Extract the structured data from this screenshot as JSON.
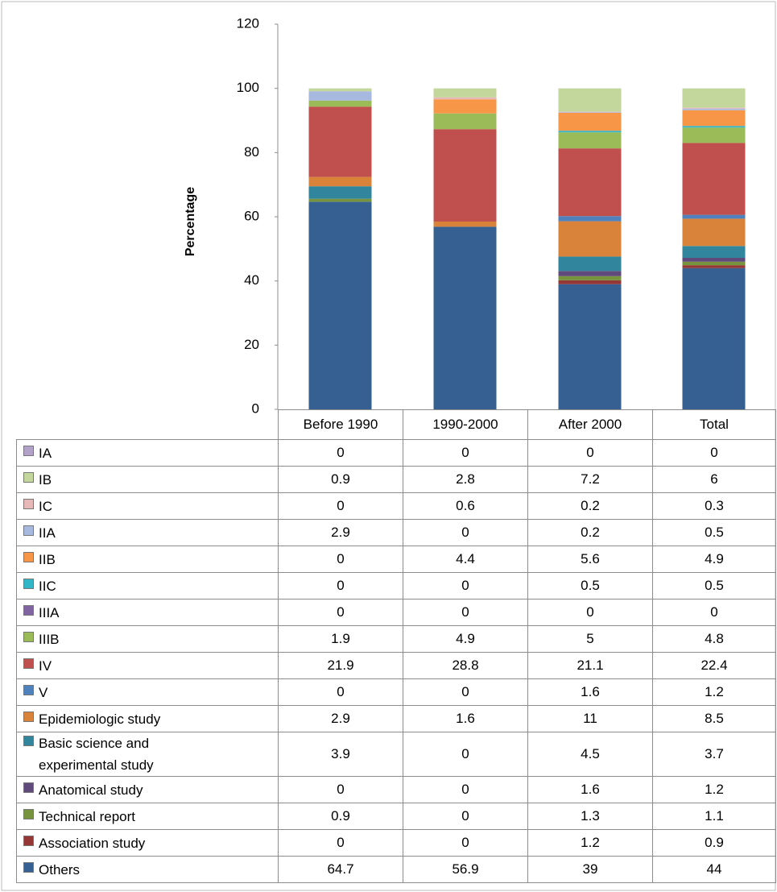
{
  "chart_data": {
    "type": "bar",
    "stacked": true,
    "ylabel": "Percentage",
    "categories": [
      "Before 1990",
      "1990-2000",
      "After 2000",
      "Total"
    ],
    "ylim": [
      0,
      120
    ],
    "yticks": [
      0,
      20,
      40,
      60,
      80,
      100,
      120
    ],
    "grid": false,
    "series": [
      {
        "name": "IA",
        "color": "#b3a2c7",
        "values": [
          0,
          0,
          0,
          0
        ]
      },
      {
        "name": "IB",
        "color": "#c3d69b",
        "values": [
          0.9,
          2.8,
          7.2,
          6
        ]
      },
      {
        "name": "IC",
        "color": "#e6b9b8",
        "values": [
          0,
          0.6,
          0.2,
          0.3
        ]
      },
      {
        "name": "IIA",
        "color": "#a7b9de",
        "values": [
          2.9,
          0,
          0.2,
          0.5
        ]
      },
      {
        "name": "IIB",
        "color": "#f79646",
        "values": [
          0,
          4.4,
          5.6,
          4.9
        ]
      },
      {
        "name": "IIC",
        "color": "#31b6c8",
        "values": [
          0,
          0,
          0.5,
          0.5
        ]
      },
      {
        "name": "IIIA",
        "color": "#8064a2",
        "values": [
          0,
          0,
          0,
          0
        ]
      },
      {
        "name": "IIIB",
        "color": "#9bbb59",
        "values": [
          1.9,
          4.9,
          5,
          4.8
        ]
      },
      {
        "name": "IV",
        "color": "#c0504d",
        "values": [
          21.9,
          28.8,
          21.1,
          22.4
        ]
      },
      {
        "name": "V",
        "color": "#4f81bd",
        "values": [
          0,
          0,
          1.6,
          1.2
        ]
      },
      {
        "name": "Epidemiologic study",
        "color": "#d8823a",
        "values": [
          2.9,
          1.6,
          11,
          8.5
        ]
      },
      {
        "name": "Basic science and experimental study",
        "color": "#31859c",
        "values": [
          3.9,
          0,
          4.5,
          3.7
        ]
      },
      {
        "name": "Anatomical study",
        "color": "#604a7b",
        "values": [
          0,
          0,
          1.6,
          1.2
        ]
      },
      {
        "name": "Technical report",
        "color": "#77933c",
        "values": [
          0.9,
          0,
          1.3,
          1.1
        ]
      },
      {
        "name": "Association study",
        "color": "#953735",
        "values": [
          0,
          0,
          1.2,
          0.9
        ]
      },
      {
        "name": "Others",
        "color": "#376092",
        "values": [
          64.7,
          56.9,
          39,
          44
        ]
      }
    ]
  }
}
